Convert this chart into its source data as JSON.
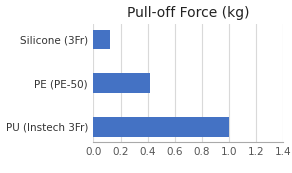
{
  "title": "Pull-off Force (kg)",
  "categories": [
    "PU (Instech 3Fr)",
    "PE (PE-50)",
    "Silicone (3Fr)"
  ],
  "values": [
    1.0,
    0.42,
    0.12
  ],
  "bar_color": "#4472C4",
  "xlim": [
    0,
    1.4
  ],
  "xticks": [
    0.0,
    0.2,
    0.4,
    0.6,
    0.8,
    1.0,
    1.2,
    1.4
  ],
  "background_color": "#ffffff",
  "grid_color": "#d9d9d9",
  "title_fontsize": 10,
  "label_fontsize": 7.5,
  "tick_fontsize": 7.5,
  "bar_height": 0.45
}
